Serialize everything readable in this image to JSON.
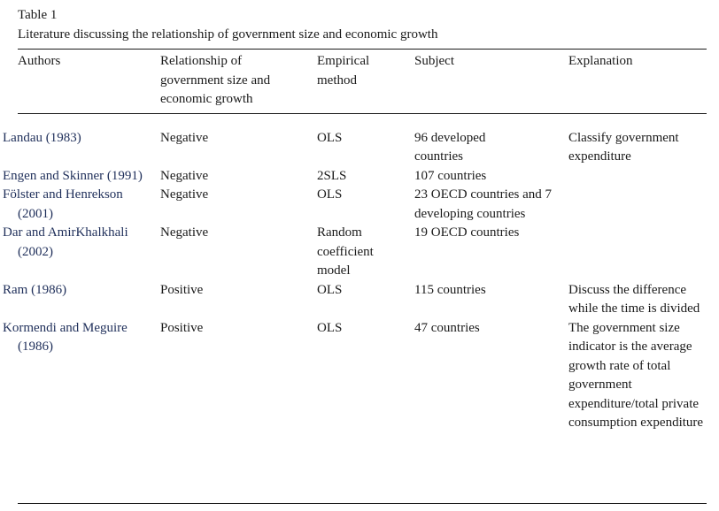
{
  "caption": {
    "label": "Table 1",
    "title": "Literature discussing the relationship of government size and economic growth"
  },
  "table": {
    "headers": {
      "authors": "Authors",
      "relationship": "Relationship of government size and economic growth",
      "method": "Empirical method",
      "subject": "Subject",
      "explanation": "Explanation"
    },
    "rows": [
      {
        "authors": "Landau (1983)",
        "relationship": "Negative",
        "method": "OLS",
        "subject": "96 developed countries",
        "explanation": "Classify government expenditure"
      },
      {
        "authors": "Engen and Skinner (1991)",
        "relationship": "Negative",
        "method": "2SLS",
        "subject": "107 countries",
        "explanation": ""
      },
      {
        "authors": "Fölster and Henrekson (2001)",
        "relationship": "Negative",
        "method": "OLS",
        "subject": "23 OECD countries and 7 developing countries",
        "explanation": ""
      },
      {
        "authors": "Dar and AmirKhalkhali (2002)",
        "relationship": "Negative",
        "method": "Random coefficient model",
        "subject": "19 OECD countries",
        "explanation": ""
      },
      {
        "authors": "Ram (1986)",
        "relationship": "Positive",
        "method": "OLS",
        "subject": "115 countries",
        "explanation": "Discuss the difference while the time is divided"
      },
      {
        "authors": "Kormendi and Meguire (1986)",
        "relationship": "Positive",
        "method": "OLS",
        "subject": "47 countries",
        "explanation": "The government size indicator is the average growth rate of total government expenditure/total private consumption expenditure"
      }
    ]
  }
}
